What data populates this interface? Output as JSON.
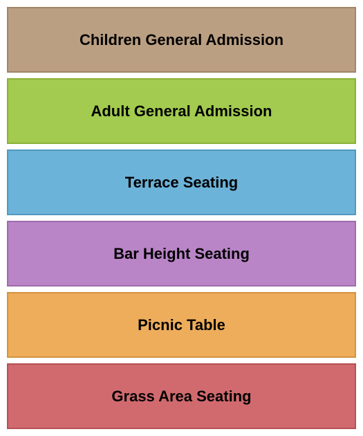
{
  "seating_chart": {
    "type": "infographic",
    "background_color": "#ffffff",
    "gap": 8,
    "border_width": 2,
    "label_fontsize": 22,
    "label_fontweight": "bold",
    "label_color": "#000000",
    "sections": [
      {
        "label": "Children General Admission",
        "fill_color": "#bb9f82",
        "border_color": "#a08568"
      },
      {
        "label": "Adult General Admission",
        "fill_color": "#a3cb4f",
        "border_color": "#8ab038"
      },
      {
        "label": "Terrace Seating",
        "fill_color": "#6cb3d9",
        "border_color": "#5299bf"
      },
      {
        "label": "Bar Height Seating",
        "fill_color": "#b985c7",
        "border_color": "#9f6bad"
      },
      {
        "label": "Picnic Table",
        "fill_color": "#eead5b",
        "border_color": "#d49341"
      },
      {
        "label": "Grass Area Seating",
        "fill_color": "#d16a6e",
        "border_color": "#b75054"
      }
    ]
  }
}
